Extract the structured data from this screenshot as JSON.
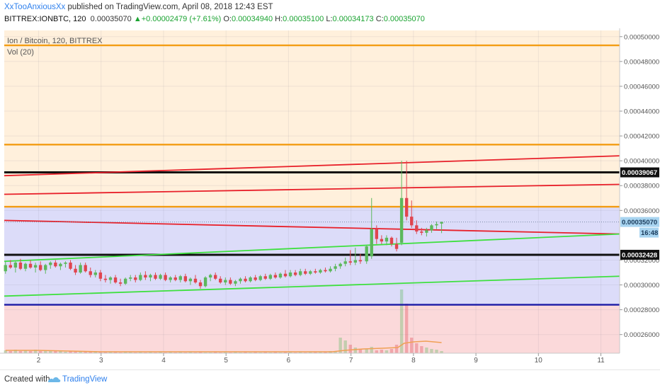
{
  "header": {
    "author": "XxTooAnxiousXx",
    "published": "published on TradingView.com, April 08, 2018 12:43 EST",
    "symbol": "BITTREX:IONBTC, 120",
    "last": "0.00035070",
    "change_arrow": "▲",
    "change": "+0.00002479 (+7.61%)",
    "o_label": "O:",
    "o_value": "0.00034940",
    "h_label": "H:",
    "h_value": "0.00035100",
    "l_label": "L:",
    "l_value": "0.00034173",
    "c_label": "C:",
    "c_value": "0.00035070"
  },
  "legend": {
    "series_title": "Ion / Bitcoin, 120, BITTREX",
    "volume_label": "Vol (20)"
  },
  "footer": {
    "created_with": "Created with",
    "brand": "TradingView"
  },
  "colors": {
    "zone_orange": "#fff0dc",
    "zone_blue": "#dcdcf9",
    "zone_red": "#fbd9da",
    "orange_line": "#f39c12",
    "red_line": "#e8202a",
    "green_line": "#3fe03f",
    "blue_line": "#1a1aa6",
    "black_line": "#111111",
    "up_candle": "#5cb85c",
    "down_candle": "#e0454f"
  },
  "chart_data": {
    "type": "candlestick",
    "title": "Ion / Bitcoin, 120, BITTREX",
    "x_ticks": [
      "2",
      "3",
      "4",
      "5",
      "6",
      "7",
      "8",
      "9",
      "10",
      "11"
    ],
    "y_ticks": [
      "0.00050000",
      "0.00048000",
      "0.00046000",
      "0.00044000",
      "0.00042000",
      "0.00040000",
      "0.00038000",
      "0.00036000",
      "0.00032000",
      "0.00030000",
      "0.00028000",
      "0.00026000"
    ],
    "ylim": [
      0.000245,
      0.000505
    ],
    "xlim": [
      1.45,
      11.3
    ],
    "price_labels": {
      "resistance": "0.00039067",
      "current": "0.00035070",
      "support": "0.00032428",
      "countdown": "16:48"
    },
    "horizontal_lines": [
      {
        "price": 0.000493,
        "color": "orange"
      },
      {
        "price": 0.000413,
        "color": "orange"
      },
      {
        "price": 0.00039067,
        "color": "black"
      },
      {
        "price": 0.000363,
        "color": "orange"
      },
      {
        "price": 0.00032428,
        "color": "black"
      },
      {
        "price": 0.000284,
        "color": "blue"
      }
    ],
    "zones": [
      {
        "from": 0.000363,
        "to": 0.000505,
        "color": "orange"
      },
      {
        "from": 0.000284,
        "to": 0.000363,
        "color": "blue"
      },
      {
        "from": 0.000245,
        "to": 0.000284,
        "color": "red"
      }
    ],
    "trend_lines": [
      {
        "x1": 1.45,
        "y1": 0.000388,
        "x2": 11.3,
        "y2": 0.000404,
        "color": "red"
      },
      {
        "x1": 1.45,
        "y1": 0.000373,
        "x2": 11.3,
        "y2": 0.000381,
        "color": "red"
      },
      {
        "x1": 1.45,
        "y1": 0.000352,
        "x2": 11.3,
        "y2": 0.000341,
        "color": "red"
      },
      {
        "x1": 1.45,
        "y1": 0.000319,
        "x2": 11.3,
        "y2": 0.000341,
        "color": "green"
      },
      {
        "x1": 1.45,
        "y1": 0.000291,
        "x2": 11.3,
        "y2": 0.000307,
        "color": "green"
      }
    ],
    "candles": [
      {
        "x": 1.47,
        "o": 0.000311,
        "h": 0.000319,
        "l": 0.000309,
        "c": 0.000316
      },
      {
        "x": 1.55,
        "o": 0.000316,
        "h": 0.00032,
        "l": 0.000313,
        "c": 0.000314
      },
      {
        "x": 1.63,
        "o": 0.000314,
        "h": 0.000319,
        "l": 0.00031,
        "c": 0.000318
      },
      {
        "x": 1.71,
        "o": 0.000318,
        "h": 0.000321,
        "l": 0.000312,
        "c": 0.000313
      },
      {
        "x": 1.79,
        "o": 0.000313,
        "h": 0.000318,
        "l": 0.000311,
        "c": 0.000317
      },
      {
        "x": 1.87,
        "o": 0.000317,
        "h": 0.00032,
        "l": 0.000313,
        "c": 0.000314
      },
      {
        "x": 1.95,
        "o": 0.000314,
        "h": 0.000318,
        "l": 0.00031,
        "c": 0.000316
      },
      {
        "x": 2.03,
        "o": 0.000316,
        "h": 0.000319,
        "l": 0.000311,
        "c": 0.000312
      },
      {
        "x": 2.11,
        "o": 0.000312,
        "h": 0.000317,
        "l": 0.000309,
        "c": 0.000316
      },
      {
        "x": 2.19,
        "o": 0.000316,
        "h": 0.000319,
        "l": 0.000313,
        "c": 0.000318
      },
      {
        "x": 2.27,
        "o": 0.000318,
        "h": 0.00032,
        "l": 0.000314,
        "c": 0.000315
      },
      {
        "x": 2.35,
        "o": 0.000315,
        "h": 0.000318,
        "l": 0.000312,
        "c": 0.000317
      },
      {
        "x": 2.43,
        "o": 0.000317,
        "h": 0.000319,
        "l": 0.000314,
        "c": 0.000318
      },
      {
        "x": 2.51,
        "o": 0.000318,
        "h": 0.00032,
        "l": 0.000312,
        "c": 0.000313
      },
      {
        "x": 2.59,
        "o": 0.000313,
        "h": 0.000316,
        "l": 0.000308,
        "c": 0.00031
      },
      {
        "x": 2.67,
        "o": 0.00031,
        "h": 0.000318,
        "l": 0.000309,
        "c": 0.000316
      },
      {
        "x": 2.75,
        "o": 0.000316,
        "h": 0.000318,
        "l": 0.00031,
        "c": 0.000311
      },
      {
        "x": 2.83,
        "o": 0.000311,
        "h": 0.000314,
        "l": 0.000306,
        "c": 0.000308
      },
      {
        "x": 2.91,
        "o": 0.000308,
        "h": 0.000312,
        "l": 0.000306,
        "c": 0.00031
      },
      {
        "x": 2.99,
        "o": 0.00031,
        "h": 0.000312,
        "l": 0.000303,
        "c": 0.000305
      },
      {
        "x": 3.07,
        "o": 0.000305,
        "h": 0.000308,
        "l": 0.000302,
        "c": 0.000304
      },
      {
        "x": 3.15,
        "o": 0.000304,
        "h": 0.000307,
        "l": 0.000301,
        "c": 0.000306
      },
      {
        "x": 3.23,
        "o": 0.000306,
        "h": 0.000308,
        "l": 0.000301,
        "c": 0.000302
      },
      {
        "x": 3.31,
        "o": 0.000302,
        "h": 0.000305,
        "l": 0.000299,
        "c": 0.000301
      },
      {
        "x": 3.39,
        "o": 0.000301,
        "h": 0.000306,
        "l": 0.0003,
        "c": 0.000305
      },
      {
        "x": 3.47,
        "o": 0.000305,
        "h": 0.000308,
        "l": 0.000303,
        "c": 0.000306
      },
      {
        "x": 3.55,
        "o": 0.000306,
        "h": 0.000308,
        "l": 0.000302,
        "c": 0.000304
      },
      {
        "x": 3.63,
        "o": 0.000304,
        "h": 0.00031,
        "l": 0.000303,
        "c": 0.000308
      },
      {
        "x": 3.71,
        "o": 0.000308,
        "h": 0.000311,
        "l": 0.000304,
        "c": 0.000306
      },
      {
        "x": 3.79,
        "o": 0.000306,
        "h": 0.000309,
        "l": 0.000303,
        "c": 0.000308
      },
      {
        "x": 3.87,
        "o": 0.000308,
        "h": 0.00031,
        "l": 0.000304,
        "c": 0.000305
      },
      {
        "x": 3.95,
        "o": 0.000305,
        "h": 0.000309,
        "l": 0.000304,
        "c": 0.000308
      },
      {
        "x": 4.03,
        "o": 0.000308,
        "h": 0.00031,
        "l": 0.000303,
        "c": 0.000304
      },
      {
        "x": 4.11,
        "o": 0.000304,
        "h": 0.000307,
        "l": 0.000302,
        "c": 0.000306
      },
      {
        "x": 4.19,
        "o": 0.000306,
        "h": 0.000308,
        "l": 0.000303,
        "c": 0.000304
      },
      {
        "x": 4.27,
        "o": 0.000304,
        "h": 0.000308,
        "l": 0.000302,
        "c": 0.000307
      },
      {
        "x": 4.35,
        "o": 0.000307,
        "h": 0.000309,
        "l": 0.000302,
        "c": 0.000303
      },
      {
        "x": 4.43,
        "o": 0.000303,
        "h": 0.000306,
        "l": 0.0003,
        "c": 0.000305
      },
      {
        "x": 4.51,
        "o": 0.000305,
        "h": 0.000308,
        "l": 0.000301,
        "c": 0.000302
      },
      {
        "x": 4.59,
        "o": 0.000302,
        "h": 0.000304,
        "l": 0.000297,
        "c": 0.000299
      },
      {
        "x": 4.67,
        "o": 0.000299,
        "h": 0.000307,
        "l": 0.000298,
        "c": 0.000306
      },
      {
        "x": 4.75,
        "o": 0.000306,
        "h": 0.000309,
        "l": 0.000303,
        "c": 0.000308
      },
      {
        "x": 4.83,
        "o": 0.000308,
        "h": 0.00031,
        "l": 0.000304,
        "c": 0.000305
      },
      {
        "x": 4.91,
        "o": 0.000305,
        "h": 0.000307,
        "l": 0.000301,
        "c": 0.000302
      },
      {
        "x": 4.99,
        "o": 0.000302,
        "h": 0.000306,
        "l": 0.0003,
        "c": 0.000304
      },
      {
        "x": 5.07,
        "o": 0.000304,
        "h": 0.000306,
        "l": 0.0003,
        "c": 0.000301
      },
      {
        "x": 5.15,
        "o": 0.000301,
        "h": 0.000304,
        "l": 0.000299,
        "c": 0.000303
      },
      {
        "x": 5.23,
        "o": 0.000303,
        "h": 0.000306,
        "l": 0.000301,
        "c": 0.000305
      },
      {
        "x": 5.31,
        "o": 0.000305,
        "h": 0.000307,
        "l": 0.000302,
        "c": 0.000303
      },
      {
        "x": 5.39,
        "o": 0.000303,
        "h": 0.000307,
        "l": 0.000302,
        "c": 0.000306
      },
      {
        "x": 5.47,
        "o": 0.000306,
        "h": 0.000308,
        "l": 0.000303,
        "c": 0.000304
      },
      {
        "x": 5.55,
        "o": 0.000304,
        "h": 0.000308,
        "l": 0.000303,
        "c": 0.000307
      },
      {
        "x": 5.63,
        "o": 0.000307,
        "h": 0.000309,
        "l": 0.000304,
        "c": 0.000305
      },
      {
        "x": 5.71,
        "o": 0.000305,
        "h": 0.000309,
        "l": 0.000304,
        "c": 0.000308
      },
      {
        "x": 5.79,
        "o": 0.000308,
        "h": 0.00031,
        "l": 0.000305,
        "c": 0.000306
      },
      {
        "x": 5.87,
        "o": 0.000306,
        "h": 0.00031,
        "l": 0.000305,
        "c": 0.000309
      },
      {
        "x": 5.95,
        "o": 0.000309,
        "h": 0.000312,
        "l": 0.000306,
        "c": 0.000307
      },
      {
        "x": 6.03,
        "o": 0.000307,
        "h": 0.000312,
        "l": 0.000306,
        "c": 0.00031
      },
      {
        "x": 6.11,
        "o": 0.00031,
        "h": 0.000312,
        "l": 0.000307,
        "c": 0.000308
      },
      {
        "x": 6.19,
        "o": 0.000308,
        "h": 0.000313,
        "l": 0.000307,
        "c": 0.000311
      },
      {
        "x": 6.27,
        "o": 0.000311,
        "h": 0.000313,
        "l": 0.000308,
        "c": 0.000309
      },
      {
        "x": 6.35,
        "o": 0.000309,
        "h": 0.000312,
        "l": 0.000308,
        "c": 0.000311
      },
      {
        "x": 6.43,
        "o": 0.000311,
        "h": 0.000313,
        "l": 0.000309,
        "c": 0.00031
      },
      {
        "x": 6.51,
        "o": 0.00031,
        "h": 0.000313,
        "l": 0.000309,
        "c": 0.000312
      },
      {
        "x": 6.59,
        "o": 0.000312,
        "h": 0.000314,
        "l": 0.00031,
        "c": 0.000311
      },
      {
        "x": 6.67,
        "o": 0.000311,
        "h": 0.000315,
        "l": 0.00031,
        "c": 0.000313
      },
      {
        "x": 6.75,
        "o": 0.000313,
        "h": 0.000317,
        "l": 0.000311,
        "c": 0.000315
      },
      {
        "x": 6.83,
        "o": 0.000315,
        "h": 0.000318,
        "l": 0.000313,
        "c": 0.000317
      },
      {
        "x": 6.91,
        "o": 0.000317,
        "h": 0.000322,
        "l": 0.000315,
        "c": 0.000319
      },
      {
        "x": 6.99,
        "o": 0.000319,
        "h": 0.000328,
        "l": 0.000316,
        "c": 0.000318
      },
      {
        "x": 7.07,
        "o": 0.000318,
        "h": 0.00033,
        "l": 0.000316,
        "c": 0.00032
      },
      {
        "x": 7.15,
        "o": 0.00032,
        "h": 0.000325,
        "l": 0.000317,
        "c": 0.000319
      },
      {
        "x": 7.25,
        "o": 0.000319,
        "h": 0.000332,
        "l": 0.000317,
        "c": 0.000331
      },
      {
        "x": 7.33,
        "o": 0.000323,
        "h": 0.00037,
        "l": 0.000321,
        "c": 0.000345
      },
      {
        "x": 7.41,
        "o": 0.000345,
        "h": 0.000348,
        "l": 0.000333,
        "c": 0.000337
      },
      {
        "x": 7.49,
        "o": 0.000337,
        "h": 0.00034,
        "l": 0.000333,
        "c": 0.000335
      },
      {
        "x": 7.57,
        "o": 0.000335,
        "h": 0.00034,
        "l": 0.000332,
        "c": 0.000338
      },
      {
        "x": 7.65,
        "o": 0.000338,
        "h": 0.000339,
        "l": 0.000331,
        "c": 0.000333
      },
      {
        "x": 7.73,
        "o": 0.000333,
        "h": 0.000338,
        "l": 0.000327,
        "c": 0.000329
      },
      {
        "x": 7.81,
        "o": 0.000334,
        "h": 0.0004,
        "l": 0.000332,
        "c": 0.00037
      },
      {
        "x": 7.89,
        "o": 0.00037,
        "h": 0.0004,
        "l": 0.000352,
        "c": 0.000355
      },
      {
        "x": 7.97,
        "o": 0.000355,
        "h": 0.000368,
        "l": 0.000346,
        "c": 0.000348
      },
      {
        "x": 8.05,
        "o": 0.000348,
        "h": 0.000352,
        "l": 0.000341,
        "c": 0.000343
      },
      {
        "x": 8.13,
        "o": 0.000343,
        "h": 0.000346,
        "l": 0.00034,
        "c": 0.000342
      },
      {
        "x": 8.21,
        "o": 0.000342,
        "h": 0.000346,
        "l": 0.000339,
        "c": 0.000344
      },
      {
        "x": 8.29,
        "o": 0.000344,
        "h": 0.000349,
        "l": 0.000342,
        "c": 0.000348
      },
      {
        "x": 8.37,
        "o": 0.000348,
        "h": 0.000351,
        "l": 0.000345,
        "c": 0.000349
      },
      {
        "x": 8.45,
        "o": 0.0003494,
        "h": 0.000351,
        "l": 0.00034173,
        "c": 0.0003507
      }
    ],
    "volume": [
      {
        "x": 1.47,
        "v": 4
      },
      {
        "x": 1.55,
        "v": 3
      },
      {
        "x": 1.63,
        "v": 5
      },
      {
        "x": 1.71,
        "v": 3
      },
      {
        "x": 1.79,
        "v": 4
      },
      {
        "x": 1.87,
        "v": 3
      },
      {
        "x": 1.95,
        "v": 5
      },
      {
        "x": 2.03,
        "v": 3
      },
      {
        "x": 2.11,
        "v": 4
      },
      {
        "x": 2.19,
        "v": 3
      },
      {
        "x": 2.27,
        "v": 3
      },
      {
        "x": 2.35,
        "v": 4
      },
      {
        "x": 2.43,
        "v": 2
      },
      {
        "x": 2.51,
        "v": 3
      },
      {
        "x": 2.59,
        "v": 2
      },
      {
        "x": 2.67,
        "v": 3
      },
      {
        "x": 2.75,
        "v": 2
      },
      {
        "x": 2.83,
        "v": 2
      },
      {
        "x": 2.91,
        "v": 3
      },
      {
        "x": 2.99,
        "v": 2
      },
      {
        "x": 3.07,
        "v": 2
      },
      {
        "x": 3.15,
        "v": 2
      },
      {
        "x": 3.23,
        "v": 2
      },
      {
        "x": 3.31,
        "v": 1
      },
      {
        "x": 3.39,
        "v": 2
      },
      {
        "x": 3.47,
        "v": 2
      },
      {
        "x": 3.55,
        "v": 1
      },
      {
        "x": 3.63,
        "v": 2
      },
      {
        "x": 3.71,
        "v": 1
      },
      {
        "x": 3.79,
        "v": 2
      },
      {
        "x": 3.87,
        "v": 1
      },
      {
        "x": 3.95,
        "v": 2
      },
      {
        "x": 4.03,
        "v": 1
      },
      {
        "x": 4.11,
        "v": 2
      },
      {
        "x": 4.19,
        "v": 1
      },
      {
        "x": 4.27,
        "v": 2
      },
      {
        "x": 4.35,
        "v": 1
      },
      {
        "x": 4.43,
        "v": 2
      },
      {
        "x": 4.51,
        "v": 1
      },
      {
        "x": 4.59,
        "v": 2
      },
      {
        "x": 4.67,
        "v": 1
      },
      {
        "x": 4.75,
        "v": 1
      },
      {
        "x": 4.83,
        "v": 2
      },
      {
        "x": 4.91,
        "v": 1
      },
      {
        "x": 4.99,
        "v": 2
      },
      {
        "x": 5.07,
        "v": 1
      },
      {
        "x": 5.15,
        "v": 2
      },
      {
        "x": 5.23,
        "v": 1
      },
      {
        "x": 5.31,
        "v": 2
      },
      {
        "x": 5.39,
        "v": 1
      },
      {
        "x": 5.47,
        "v": 2
      },
      {
        "x": 5.55,
        "v": 1
      },
      {
        "x": 5.63,
        "v": 2
      },
      {
        "x": 5.71,
        "v": 1
      },
      {
        "x": 5.79,
        "v": 2
      },
      {
        "x": 5.87,
        "v": 1
      },
      {
        "x": 5.95,
        "v": 2
      },
      {
        "x": 6.03,
        "v": 2
      },
      {
        "x": 6.11,
        "v": 1
      },
      {
        "x": 6.19,
        "v": 2
      },
      {
        "x": 6.27,
        "v": 1
      },
      {
        "x": 6.35,
        "v": 2
      },
      {
        "x": 6.43,
        "v": 2
      },
      {
        "x": 6.51,
        "v": 2
      },
      {
        "x": 6.59,
        "v": 2
      },
      {
        "x": 6.67,
        "v": 3
      },
      {
        "x": 6.75,
        "v": 3
      },
      {
        "x": 6.83,
        "v": 22
      },
      {
        "x": 6.91,
        "v": 18
      },
      {
        "x": 6.99,
        "v": 12
      },
      {
        "x": 7.07,
        "v": 8
      },
      {
        "x": 7.15,
        "v": 5
      },
      {
        "x": 7.25,
        "v": 6
      },
      {
        "x": 7.33,
        "v": 9
      },
      {
        "x": 7.41,
        "v": 4
      },
      {
        "x": 7.49,
        "v": 5
      },
      {
        "x": 7.57,
        "v": 4
      },
      {
        "x": 7.65,
        "v": 6
      },
      {
        "x": 7.73,
        "v": 12
      },
      {
        "x": 7.81,
        "v": 90
      },
      {
        "x": 7.89,
        "v": 70
      },
      {
        "x": 7.97,
        "v": 22
      },
      {
        "x": 8.05,
        "v": 14
      },
      {
        "x": 8.13,
        "v": 10
      },
      {
        "x": 8.21,
        "v": 8
      },
      {
        "x": 8.29,
        "v": 6
      },
      {
        "x": 8.37,
        "v": 5
      },
      {
        "x": 8.45,
        "v": 3
      }
    ],
    "volume_ma": [
      {
        "x": 1.47,
        "v": 4
      },
      {
        "x": 2.0,
        "v": 4
      },
      {
        "x": 2.5,
        "v": 3
      },
      {
        "x": 3.0,
        "v": 2
      },
      {
        "x": 4.0,
        "v": 2
      },
      {
        "x": 5.0,
        "v": 2
      },
      {
        "x": 6.0,
        "v": 2
      },
      {
        "x": 6.7,
        "v": 2
      },
      {
        "x": 6.9,
        "v": 4
      },
      {
        "x": 7.2,
        "v": 6
      },
      {
        "x": 7.5,
        "v": 7
      },
      {
        "x": 7.75,
        "v": 8
      },
      {
        "x": 7.85,
        "v": 14
      },
      {
        "x": 8.0,
        "v": 16
      },
      {
        "x": 8.2,
        "v": 17
      },
      {
        "x": 8.45,
        "v": 15
      }
    ],
    "volume_max": 100
  }
}
